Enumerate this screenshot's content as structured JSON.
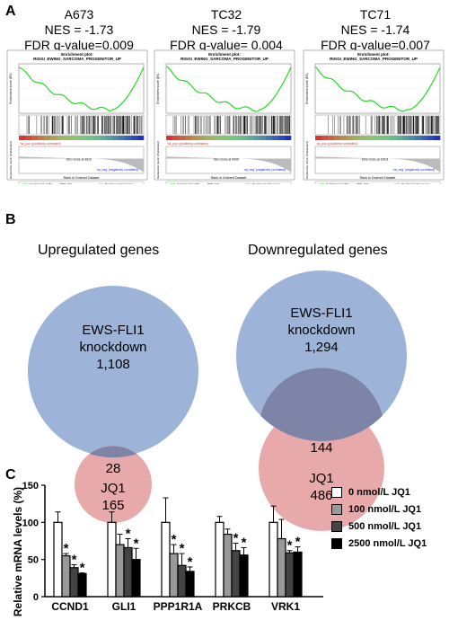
{
  "panels": {
    "a": "A",
    "b": "B",
    "c": "C"
  },
  "gsea": [
    {
      "cell": "A673",
      "nes": "NES = -1.73",
      "fdr": "FDR q-value=0.009",
      "zero": "Zero cross at 9810"
    },
    {
      "cell": "TC32",
      "nes": "NES = -1.79",
      "fdr": "FDR q-value= 0.004",
      "zero": "Zero cross at 9909"
    },
    {
      "cell": "TC71",
      "nes": "NES = -1.74",
      "fdr": "FDR q-value=0.007",
      "zero": "Zero cross at 10611"
    }
  ],
  "gsea_plot": {
    "title": "Enrichment plot:",
    "subtitle": "RIGGI_EWING_SARCOMA_PROGENITOR_UP",
    "ylabel_es": "Enrichment score (ES)",
    "ylabel_rank": "Ranked list metric (PreRanked)",
    "xlabel": "Rank in Ordered Dataset",
    "pos_label": "'na_pos' (positively correlated)",
    "neg_label": "'na_neg' (negatively correlated)",
    "legend": [
      "Enrichment profile",
      "Hits",
      "Ranking metric scores"
    ],
    "colors": {
      "profile": "#22dd22",
      "red": "#e03030",
      "blue": "#2030c0"
    }
  },
  "venn": {
    "up": {
      "title": "Upregulated genes",
      "big_l1": "EWS-FLI1",
      "big_l2": "knockdown",
      "big_n": "1,108",
      "overlap": "28",
      "small_l": "JQ1",
      "small_n": "165"
    },
    "down": {
      "title": "Downregulated genes",
      "big_l1": "EWS-FLI1",
      "big_l2": "knockdown",
      "big_n": "1,294",
      "overlap": "144",
      "small_l": "JQ1",
      "small_n": "486"
    },
    "colors": {
      "blue": "#9db4d8",
      "red": "#e8a9ab",
      "overlap": "#7d84a8"
    }
  },
  "chart_data": {
    "type": "bar",
    "ylabel": "Relative mRNA levels (%)",
    "ylim": [
      0,
      150
    ],
    "yticks": [
      "0",
      "50",
      "100",
      "150"
    ],
    "categories": [
      "CCND1",
      "GLI1",
      "PPP1R1A",
      "PRKCB",
      "VRK1"
    ],
    "series": [
      {
        "name": "0 nmol/L JQ1",
        "color": "#ffffff",
        "values": [
          100,
          100,
          100,
          100,
          100
        ],
        "err": [
          14,
          14,
          33,
          8,
          22
        ]
      },
      {
        "name": "100 nmol/L JQ1",
        "color": "#999999",
        "values": [
          55,
          70,
          58,
          84,
          78
        ],
        "err": [
          3,
          14,
          12,
          7,
          26
        ]
      },
      {
        "name": "500 nmol/L JQ1",
        "color": "#444444",
        "values": [
          39,
          66,
          42,
          62,
          59
        ],
        "err": [
          4,
          12,
          16,
          10,
          3
        ]
      },
      {
        "name": "2500 nmol/L JQ1",
        "color": "#000000",
        "values": [
          31,
          50,
          34,
          56,
          60
        ],
        "err": [
          1,
          15,
          6,
          10,
          7
        ]
      }
    ],
    "significance": "*",
    "sig_marks": [
      [
        1,
        1
      ],
      [
        1,
        2
      ],
      [
        1,
        3
      ],
      [
        2,
        2
      ],
      [
        2,
        3
      ],
      [
        3,
        1
      ],
      [
        3,
        2
      ],
      [
        3,
        3
      ],
      [
        4,
        2
      ],
      [
        4,
        3
      ],
      [
        5,
        2
      ],
      [
        5,
        3
      ]
    ]
  }
}
